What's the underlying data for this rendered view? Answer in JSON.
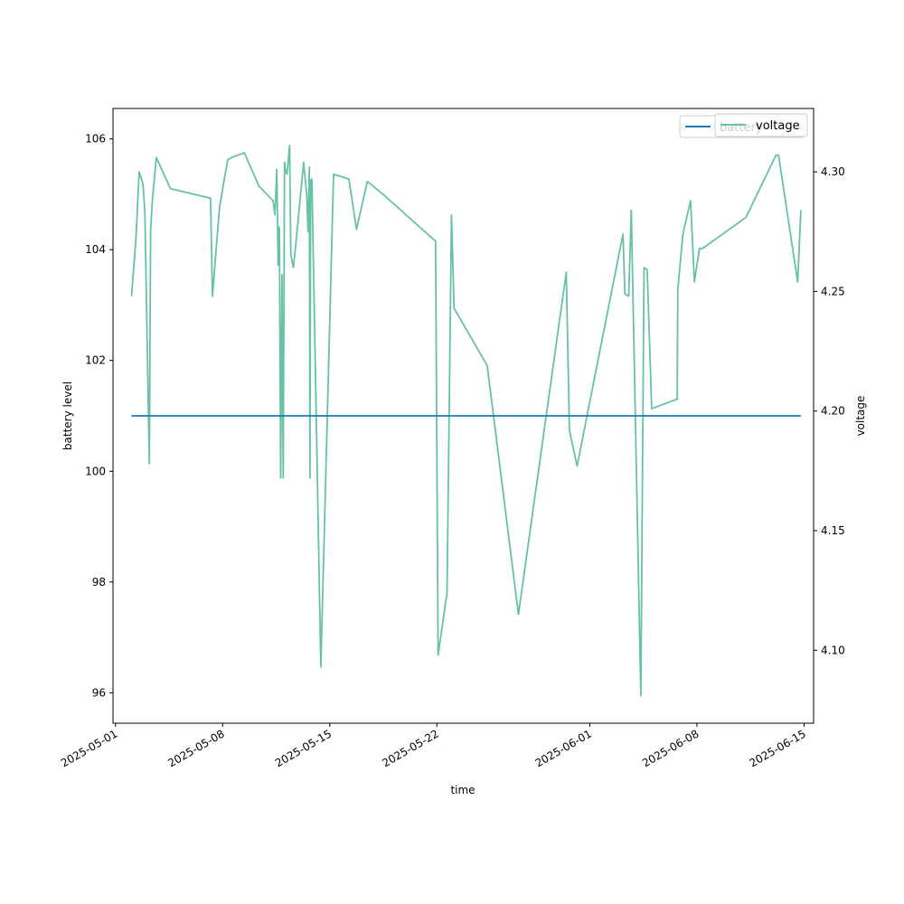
{
  "chart_data": {
    "type": "line",
    "xlabel": "time",
    "ylabel_left": "battery level",
    "ylabel_right": "voltage",
    "x_ticks": [
      "2025-05-01",
      "2025-05-08",
      "2025-05-15",
      "2025-05-22",
      "2025-06-01",
      "2025-06-08",
      "2025-06-15"
    ],
    "xlim": [
      "2025-04-30T20:00",
      "2025-06-15T15:00"
    ],
    "y_left": {
      "ylim": [
        95.45,
        106.55
      ],
      "ticks": [
        96,
        98,
        100,
        102,
        104,
        106
      ]
    },
    "y_right": {
      "ylim": [
        4.0695,
        4.3265
      ],
      "ticks": [
        4.1,
        4.15,
        4.2,
        4.25,
        4.3
      ]
    },
    "legends": [
      {
        "placement": "top-right",
        "entries": [
          "battery"
        ]
      },
      {
        "placement": "top-right",
        "entries": [
          "voltage"
        ]
      }
    ],
    "colors": {
      "battery": "#1f77b4",
      "voltage": "#66c2a5"
    },
    "series": [
      {
        "name": "battery",
        "axis": "left",
        "x": [
          "2025-05-02T01:00",
          "2025-06-14T19:00"
        ],
        "y": [
          101,
          101
        ]
      },
      {
        "name": "voltage",
        "axis": "right",
        "x": [
          "2025-05-02T01:00",
          "2025-05-02T08:00",
          "2025-05-02T13:00",
          "2025-05-02T19:00",
          "2025-05-02T22:00",
          "2025-05-03T05:00",
          "2025-05-03T07:00",
          "2025-05-03T10:00",
          "2025-05-03T16:00",
          "2025-05-04T14:00",
          "2025-05-07T05:00",
          "2025-05-07T08:00",
          "2025-05-07T19:00",
          "2025-05-08T02:00",
          "2025-05-08T08:00",
          "2025-05-08T14:00",
          "2025-05-09T10:00",
          "2025-05-10T09:00",
          "2025-05-11T07:00",
          "2025-05-11T10:00",
          "2025-05-11T13:00",
          "2025-05-11T15:00",
          "2025-05-11T17:00",
          "2025-05-11T19:00",
          "2025-05-11T21:00",
          "2025-05-11T23:00",
          "2025-05-12T01:00",
          "2025-05-12T03:00",
          "2025-05-12T05:00",
          "2025-05-12T07:00",
          "2025-05-12T09:00",
          "2025-05-12T11:00",
          "2025-05-12T15:00",
          "2025-05-12T20:00",
          "2025-05-13T07:00",
          "2025-05-13T12:00",
          "2025-05-13T14:00",
          "2025-05-13T16:00",
          "2025-05-13T17:00",
          "2025-05-13T18:00",
          "2025-05-13T20:00",
          "2025-05-14T10:00",
          "2025-05-15T06:00",
          "2025-05-16T06:00",
          "2025-05-16T18:00",
          "2025-05-17T11:00",
          "2025-05-18T10:00",
          "2025-05-21T22:00",
          "2025-05-22T02:00",
          "2025-05-22T16:00",
          "2025-05-22T23:00",
          "2025-05-23T03:00",
          "2025-05-25T07:00",
          "2025-05-27T08:00",
          "2025-05-30T11:00",
          "2025-05-30T16:00",
          "2025-05-31T04:00",
          "2025-06-03T04:00",
          "2025-06-03T07:00",
          "2025-06-03T13:00",
          "2025-06-03T17:00",
          "2025-06-04T08:00",
          "2025-06-04T13:00",
          "2025-06-04T18:00",
          "2025-06-05T01:00",
          "2025-06-06T17:00",
          "2025-06-06T18:00",
          "2025-06-07T02:00",
          "2025-06-07T14:00",
          "2025-06-07T20:00",
          "2025-06-08T04:00",
          "2025-06-08T09:00",
          "2025-06-11T05:00",
          "2025-06-13T04:00",
          "2025-06-13T08:00",
          "2025-06-14T14:00",
          "2025-06-14T19:00"
        ],
        "y": [
          4.248,
          4.272,
          4.3,
          4.295,
          4.283,
          4.178,
          4.276,
          4.289,
          4.306,
          4.293,
          4.289,
          4.248,
          4.285,
          4.296,
          4.305,
          4.306,
          4.308,
          4.294,
          4.288,
          4.282,
          4.301,
          4.261,
          4.277,
          4.172,
          4.257,
          4.172,
          4.304,
          4.3,
          4.299,
          4.305,
          4.311,
          4.265,
          4.26,
          4.273,
          4.304,
          4.29,
          4.275,
          4.302,
          4.172,
          4.296,
          4.297,
          4.093,
          4.299,
          4.297,
          4.276,
          4.296,
          4.291,
          4.271,
          4.098,
          4.124,
          4.282,
          4.243,
          4.219,
          4.115,
          4.258,
          4.192,
          4.177,
          4.274,
          4.249,
          4.248,
          4.284,
          4.081,
          4.26,
          4.259,
          4.201,
          4.205,
          4.251,
          4.274,
          4.288,
          4.254,
          4.268,
          4.268,
          4.281,
          4.307,
          4.307,
          4.254,
          4.284
        ]
      }
    ]
  }
}
